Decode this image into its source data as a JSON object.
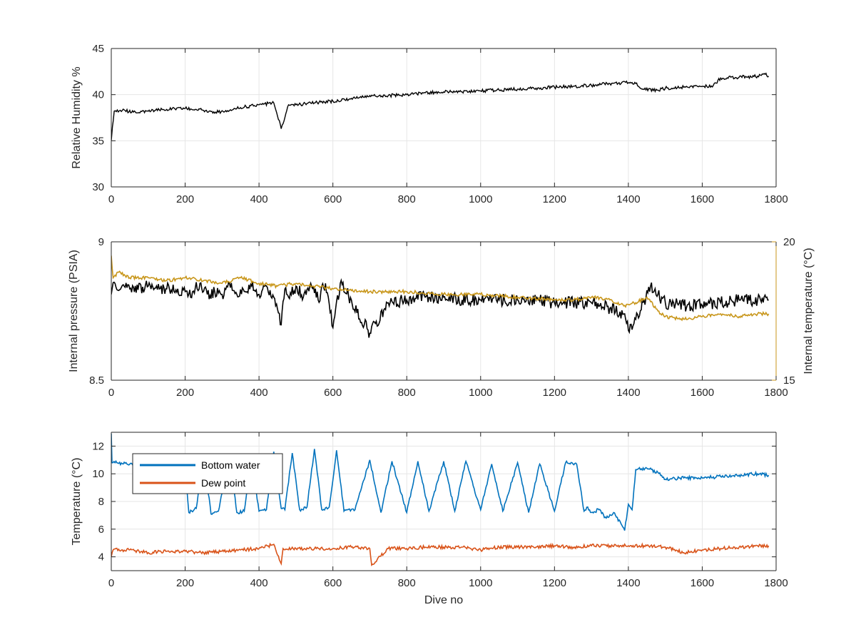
{
  "chart_data": [
    {
      "type": "line",
      "ylabel": "Relative Humidity %",
      "xlabel": "",
      "xlim": [
        0,
        1800
      ],
      "ylim": [
        30,
        45
      ],
      "xticks": [
        0,
        200,
        400,
        600,
        800,
        1000,
        1200,
        1400,
        1600,
        1800
      ],
      "yticks": [
        30,
        35,
        40,
        45
      ],
      "grid": true,
      "series": [
        {
          "color": "#000000",
          "x": [
            0,
            3,
            8,
            30,
            60,
            100,
            150,
            200,
            250,
            290,
            350,
            400,
            440,
            460,
            480,
            500,
            550,
            600,
            650,
            700,
            750,
            800,
            850,
            900,
            950,
            1000,
            1050,
            1100,
            1150,
            1200,
            1250,
            1300,
            1350,
            1400,
            1420,
            1440,
            1480,
            1500,
            1550,
            1600,
            1630,
            1650,
            1700,
            1750,
            1770,
            1780
          ],
          "y": [
            35.0,
            36.5,
            38.2,
            38.3,
            38.1,
            38.2,
            38.4,
            38.5,
            38.3,
            38.1,
            38.6,
            38.9,
            39.1,
            36.3,
            38.9,
            38.9,
            39.1,
            39.3,
            39.6,
            39.9,
            39.9,
            40.0,
            40.2,
            40.3,
            40.3,
            40.4,
            40.5,
            40.6,
            40.7,
            40.8,
            40.9,
            41.0,
            41.2,
            41.3,
            41.2,
            40.6,
            40.5,
            40.7,
            40.8,
            40.9,
            41.0,
            41.8,
            41.9,
            42.0,
            42.2,
            42.0
          ]
        }
      ]
    },
    {
      "type": "line",
      "ylabel": "Internal pressure (PSIA)",
      "y2label": "Internal temperature (°C)",
      "xlabel": "",
      "xlim": [
        0,
        1800
      ],
      "ylim": [
        8.5,
        9
      ],
      "y2lim": [
        15,
        20
      ],
      "xticks": [
        0,
        200,
        400,
        600,
        800,
        1000,
        1200,
        1400,
        1600,
        1800
      ],
      "yticks": [
        8.5,
        9
      ],
      "y2ticks": [
        15,
        20
      ],
      "grid": true,
      "series": [
        {
          "axis": "left",
          "color": "#000000",
          "x": [
            0,
            10,
            50,
            100,
            150,
            200,
            210,
            220,
            240,
            260,
            280,
            300,
            320,
            340,
            360,
            380,
            400,
            420,
            440,
            460,
            470,
            480,
            500,
            520,
            540,
            560,
            580,
            600,
            620,
            650,
            700,
            750,
            800,
            850,
            900,
            950,
            1000,
            1050,
            1100,
            1150,
            1200,
            1250,
            1300,
            1350,
            1390,
            1400,
            1420,
            1440,
            1460,
            1480,
            1500,
            1550,
            1600,
            1650,
            1700,
            1750,
            1780
          ],
          "y": [
            8.81,
            8.85,
            8.83,
            8.84,
            8.83,
            8.82,
            8.81,
            8.82,
            8.85,
            8.81,
            8.82,
            8.81,
            8.85,
            8.81,
            8.82,
            8.84,
            8.81,
            8.84,
            8.8,
            8.7,
            8.83,
            8.8,
            8.84,
            8.8,
            8.85,
            8.79,
            8.85,
            8.69,
            8.85,
            8.79,
            8.67,
            8.78,
            8.79,
            8.8,
            8.8,
            8.79,
            8.79,
            8.79,
            8.79,
            8.79,
            8.78,
            8.78,
            8.78,
            8.76,
            8.74,
            8.68,
            8.72,
            8.78,
            8.84,
            8.81,
            8.78,
            8.77,
            8.77,
            8.78,
            8.79,
            8.79,
            8.79
          ]
        },
        {
          "axis": "right",
          "color": "#c8961a",
          "x": [
            0,
            5,
            20,
            50,
            100,
            150,
            200,
            250,
            300,
            350,
            400,
            450,
            500,
            600,
            700,
            800,
            900,
            1000,
            1100,
            1200,
            1250,
            1300,
            1350,
            1390,
            1420,
            1450,
            1480,
            1500,
            1550,
            1600,
            1650,
            1700,
            1750,
            1780
          ],
          "y": [
            19.5,
            18.7,
            18.9,
            18.7,
            18.7,
            18.6,
            18.7,
            18.6,
            18.5,
            18.7,
            18.5,
            18.4,
            18.5,
            18.3,
            18.2,
            18.2,
            18.1,
            18.1,
            18.0,
            17.9,
            17.9,
            18.0,
            17.9,
            17.7,
            17.8,
            18.0,
            17.5,
            17.3,
            17.2,
            17.3,
            17.4,
            17.3,
            17.4,
            17.4
          ]
        }
      ]
    },
    {
      "type": "line",
      "ylabel": "Temperature (°C)",
      "xlabel": "Dive no",
      "xlim": [
        0,
        1800
      ],
      "ylim": [
        3,
        13
      ],
      "xticks": [
        0,
        200,
        400,
        600,
        800,
        1000,
        1200,
        1400,
        1600,
        1800
      ],
      "yticks": [
        4,
        6,
        8,
        10,
        12
      ],
      "grid": true,
      "legend": "top-left",
      "series": [
        {
          "name": "Bottom water",
          "color": "#0072bd",
          "x": [
            0,
            2,
            10,
            50,
            100,
            150,
            200,
            210,
            230,
            250,
            270,
            290,
            320,
            340,
            360,
            380,
            400,
            420,
            440,
            460,
            470,
            490,
            510,
            530,
            550,
            570,
            590,
            610,
            630,
            660,
            700,
            730,
            760,
            800,
            830,
            860,
            900,
            930,
            960,
            1000,
            1030,
            1060,
            1100,
            1130,
            1160,
            1200,
            1230,
            1260,
            1280,
            1290,
            1300,
            1320,
            1340,
            1360,
            1380,
            1390,
            1400,
            1410,
            1420,
            1450,
            1480,
            1500,
            1550,
            1600,
            1650,
            1700,
            1750,
            1780
          ],
          "y": [
            12.9,
            10.8,
            10.8,
            10.7,
            10.8,
            10.6,
            10.5,
            7.2,
            7.5,
            11.3,
            7.1,
            7.3,
            11.2,
            7.2,
            7.3,
            11.1,
            7.3,
            7.4,
            11.6,
            7.5,
            7.4,
            11.5,
            7.4,
            7.6,
            11.8,
            7.4,
            7.6,
            11.7,
            7.3,
            7.4,
            11.0,
            7.2,
            10.9,
            7.2,
            10.9,
            7.3,
            10.9,
            7.3,
            10.9,
            7.4,
            10.7,
            7.3,
            10.8,
            7.2,
            10.7,
            7.3,
            10.8,
            10.7,
            7.3,
            7.6,
            7.2,
            7.4,
            6.8,
            7.2,
            6.4,
            5.9,
            7.8,
            7.4,
            10.3,
            10.4,
            10.1,
            9.6,
            9.7,
            9.7,
            9.8,
            9.9,
            10.0,
            9.9
          ]
        },
        {
          "name": "Dew point",
          "color": "#d95319",
          "x": [
            0,
            5,
            50,
            100,
            150,
            200,
            250,
            300,
            350,
            400,
            440,
            460,
            465,
            500,
            550,
            600,
            650,
            700,
            705,
            750,
            800,
            850,
            900,
            950,
            1000,
            1050,
            1100,
            1150,
            1200,
            1250,
            1300,
            1350,
            1400,
            1450,
            1500,
            1550,
            1600,
            1650,
            1700,
            1750,
            1780
          ],
          "y": [
            4.0,
            4.5,
            4.5,
            4.3,
            4.4,
            4.4,
            4.3,
            4.4,
            4.5,
            4.6,
            4.9,
            3.5,
            4.6,
            4.6,
            4.6,
            4.6,
            4.7,
            4.6,
            3.4,
            4.6,
            4.6,
            4.7,
            4.7,
            4.7,
            4.5,
            4.7,
            4.7,
            4.7,
            4.8,
            4.7,
            4.8,
            4.8,
            4.8,
            4.8,
            4.7,
            4.3,
            4.5,
            4.6,
            4.7,
            4.8,
            4.8
          ]
        }
      ]
    }
  ]
}
